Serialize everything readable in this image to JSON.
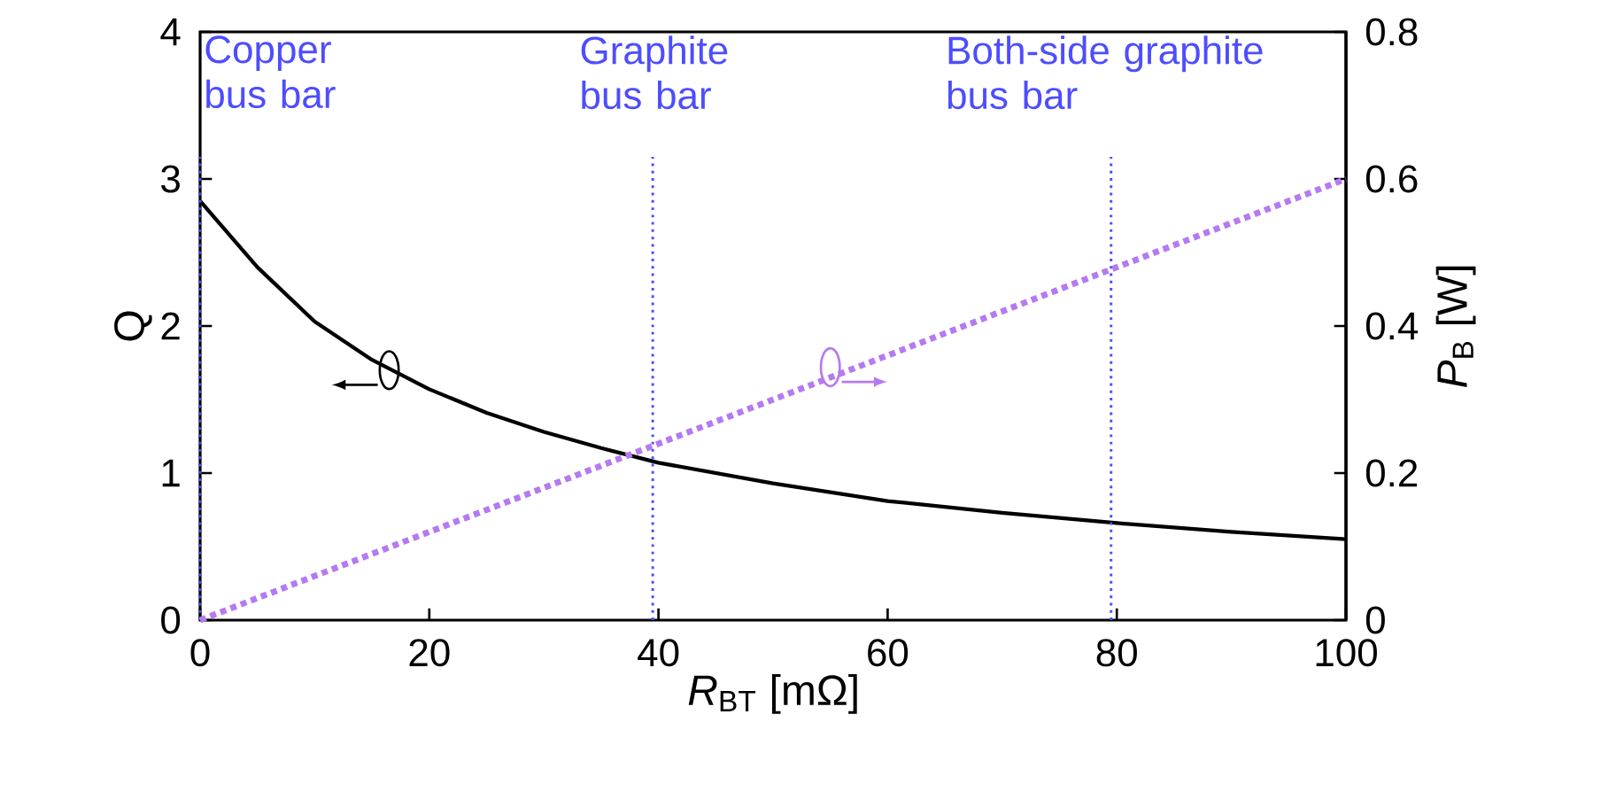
{
  "chart_data": {
    "type": "line",
    "xlabel": "$_{}$*R*$_{BT}$ [mΩ]",
    "ylabel": "Q",
    "y2label": "*P*$_{B}$ [W]",
    "xlim": [
      0,
      100
    ],
    "xticks": [
      0,
      20,
      40,
      60,
      80,
      100
    ],
    "ylim": [
      0,
      4
    ],
    "yticks": [
      0,
      1,
      2,
      3,
      4
    ],
    "y2lim": [
      0,
      0.8
    ],
    "y2ticks": [
      0,
      0.2,
      0.4,
      0.6,
      0.8
    ],
    "grid": false,
    "series": [
      {
        "color": "#000000",
        "line_style": "solid",
        "x": [
          0,
          5,
          10,
          15,
          20,
          25,
          30,
          35,
          40,
          50,
          60,
          70,
          80,
          90,
          100
        ],
        "values": [
          2.85,
          2.4,
          2.03,
          1.77,
          1.57,
          1.41,
          1.28,
          1.17,
          1.07,
          0.93,
          0.81,
          0.73,
          0.66,
          0.6,
          0.55
        ]
      },
      {
        "color": "#b57af0",
        "line_style": "dotted",
        "axis": "y2",
        "x": [
          0,
          100
        ],
        "values": [
          0,
          0.6
        ]
      }
    ],
    "ref_lines": [
      {
        "axis": "x",
        "value": 0,
        "label": "Copper bus bar",
        "color": "#4d4dff",
        "line_style": "dotted"
      },
      {
        "axis": "x",
        "value": 39.5,
        "label": "Graphite bus bar",
        "color": "#4d4dff",
        "line_style": "dotted"
      },
      {
        "axis": "x",
        "value": 79.5,
        "label": "Both-side graphite bus bar",
        "color": "#4d4dff",
        "line_style": "dotted"
      }
    ]
  }
}
